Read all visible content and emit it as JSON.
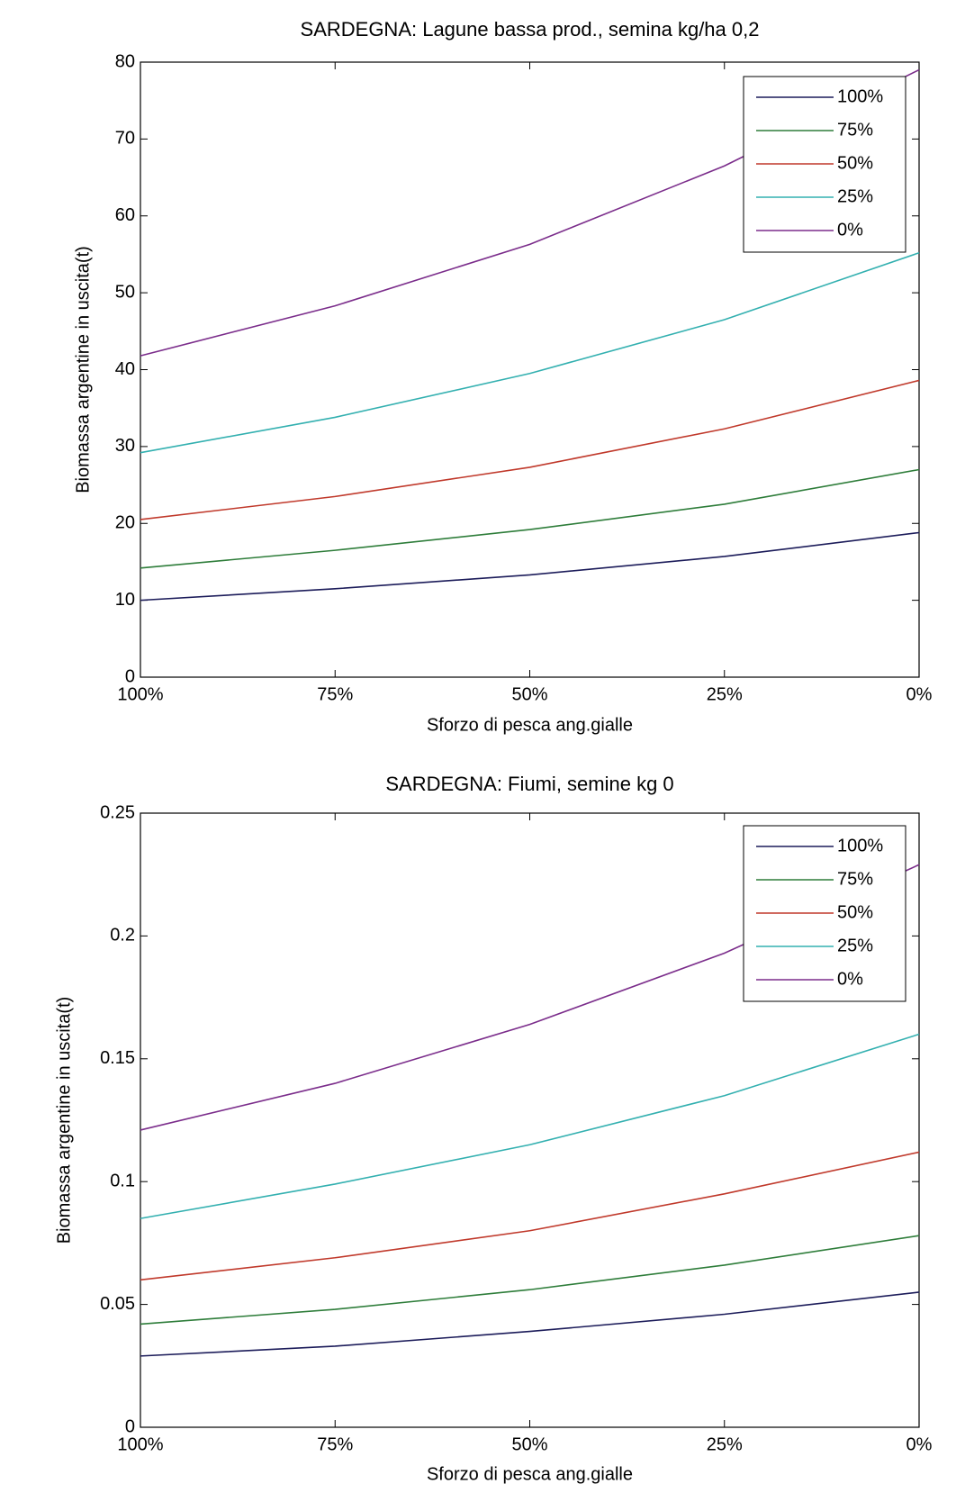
{
  "chart_data": [
    {
      "type": "line",
      "title": "SARDEGNA: Lagune bassa prod., semina kg/ha 0,2",
      "x_label": "Sforzo di pesca ang.gialle",
      "y_label": "Biomassa argentine in uscita(t)",
      "categories": [
        "100%",
        "75%",
        "50%",
        "25%",
        "0%"
      ],
      "ylim": [
        0,
        80
      ],
      "yticks": [
        0,
        10,
        20,
        30,
        40,
        50,
        60,
        70,
        80
      ],
      "legend": "upper right",
      "series": [
        {
          "name": "100%",
          "color": "#1c1c5a",
          "values": [
            10,
            11.5,
            13.3,
            15.7,
            18.8
          ]
        },
        {
          "name": "75%",
          "color": "#2e7d3a",
          "values": [
            14.2,
            16.5,
            19.2,
            22.5,
            27
          ]
        },
        {
          "name": "50%",
          "color": "#c0392b",
          "values": [
            20.5,
            23.5,
            27.3,
            32.3,
            38.6
          ]
        },
        {
          "name": "25%",
          "color": "#33b0b0",
          "values": [
            29.2,
            33.8,
            39.5,
            46.5,
            55.2
          ]
        },
        {
          "name": "0%",
          "color": "#7b2d8b",
          "values": [
            41.8,
            48.3,
            56.3,
            66.5,
            79
          ]
        }
      ]
    },
    {
      "type": "line",
      "title": "SARDEGNA: Fiumi, semine kg 0",
      "x_label": "Sforzo di pesca ang.gialle",
      "y_label": "Biomassa argentine in uscita(t)",
      "categories": [
        "100%",
        "75%",
        "50%",
        "25%",
        "0%"
      ],
      "ylim": [
        0,
        0.25
      ],
      "yticks": [
        0,
        0.05,
        0.1,
        0.15,
        0.2,
        0.25
      ],
      "legend": "upper right",
      "series": [
        {
          "name": "100%",
          "color": "#1c1c5a",
          "values": [
            0.029,
            0.033,
            0.039,
            0.046,
            0.055
          ]
        },
        {
          "name": "75%",
          "color": "#2e7d3a",
          "values": [
            0.042,
            0.048,
            0.056,
            0.066,
            0.078
          ]
        },
        {
          "name": "50%",
          "color": "#c0392b",
          "values": [
            0.06,
            0.069,
            0.08,
            0.095,
            0.112
          ]
        },
        {
          "name": "25%",
          "color": "#33b0b0",
          "values": [
            0.085,
            0.099,
            0.115,
            0.135,
            0.16
          ]
        },
        {
          "name": "0%",
          "color": "#7b2d8b",
          "values": [
            0.121,
            0.14,
            0.164,
            0.193,
            0.229
          ]
        }
      ]
    }
  ]
}
